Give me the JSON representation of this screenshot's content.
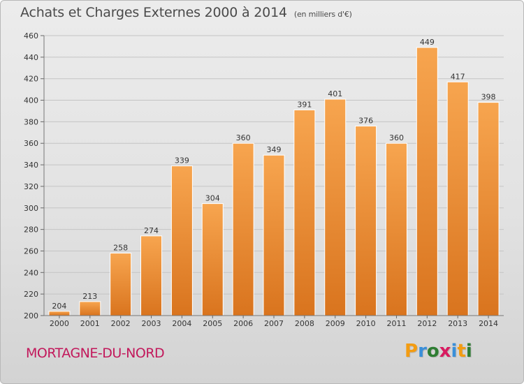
{
  "header": {
    "title": "Achats et Charges Externes 2000 à 2014",
    "subtitle": "(en milliers d'€)"
  },
  "footer": {
    "town": "MORTAGNE-DU-NORD",
    "logo_text": "Proxiti",
    "logo_colors": [
      "#f39c12",
      "#3a8fd9",
      "#2e7d32",
      "#d81b60",
      "#3a8fd9",
      "#f39c12",
      "#2e7d32"
    ]
  },
  "chart_data": {
    "type": "bar",
    "title": "Achats et Charges Externes 2000 à 2014",
    "subtitle": "(en milliers d'€)",
    "categories": [
      "2000",
      "2001",
      "2002",
      "2003",
      "2004",
      "2005",
      "2006",
      "2007",
      "2008",
      "2009",
      "2010",
      "2011",
      "2012",
      "2013",
      "2014"
    ],
    "values": [
      204,
      213,
      258,
      274,
      339,
      304,
      360,
      349,
      391,
      401,
      376,
      360,
      449,
      417,
      398
    ],
    "ylim": [
      200,
      460
    ],
    "yticks": [
      200,
      220,
      240,
      260,
      280,
      300,
      320,
      340,
      360,
      380,
      400,
      420,
      440,
      460
    ],
    "grid": true,
    "bar_color_top": "#f7a54f",
    "bar_color_bottom": "#d9741e",
    "data_labels": true
  }
}
